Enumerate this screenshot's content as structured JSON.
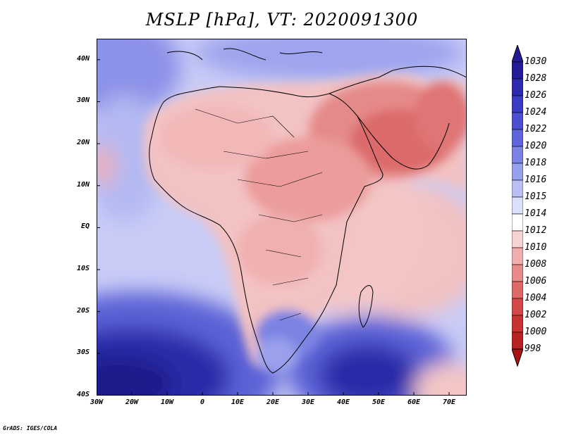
{
  "title": "MSLP [hPa], VT: 2020091300",
  "credit": "GrADS: IGES/COLA",
  "map": {
    "lon_range": [
      -30,
      75
    ],
    "lat_range": [
      -40,
      45
    ],
    "lat_ticks": [
      {
        "value": 40,
        "label": "40N"
      },
      {
        "value": 30,
        "label": "30N"
      },
      {
        "value": 20,
        "label": "20N"
      },
      {
        "value": 10,
        "label": "10N"
      },
      {
        "value": 0,
        "label": "EQ"
      },
      {
        "value": -10,
        "label": "10S"
      },
      {
        "value": -20,
        "label": "20S"
      },
      {
        "value": -30,
        "label": "30S"
      },
      {
        "value": -40,
        "label": "40S"
      }
    ],
    "lon_ticks": [
      {
        "value": -30,
        "label": "30W"
      },
      {
        "value": -20,
        "label": "20W"
      },
      {
        "value": -10,
        "label": "10W"
      },
      {
        "value": 0,
        "label": "0"
      },
      {
        "value": 10,
        "label": "10E"
      },
      {
        "value": 20,
        "label": "20E"
      },
      {
        "value": 30,
        "label": "30E"
      },
      {
        "value": 40,
        "label": "40E"
      },
      {
        "value": 50,
        "label": "50E"
      },
      {
        "value": 60,
        "label": "60E"
      },
      {
        "value": 70,
        "label": "70E"
      }
    ]
  },
  "colorbar": {
    "labels": [
      "1030",
      "1028",
      "1026",
      "1024",
      "1022",
      "1020",
      "1018",
      "1016",
      "1015",
      "1014",
      "1012",
      "1010",
      "1008",
      "1006",
      "1004",
      "1002",
      "1000",
      "998"
    ],
    "colors": [
      "#241c96",
      "#2e2ab0",
      "#3a3ac4",
      "#4b4fd2",
      "#5f66dc",
      "#7a82e4",
      "#989fec",
      "#b9bff4",
      "#dcdffa",
      "#ffffff",
      "#f7d2d2",
      "#f0aeae",
      "#e78a8a",
      "#de6868",
      "#d44848",
      "#c83232",
      "#b82222",
      "#a81414"
    ]
  }
}
